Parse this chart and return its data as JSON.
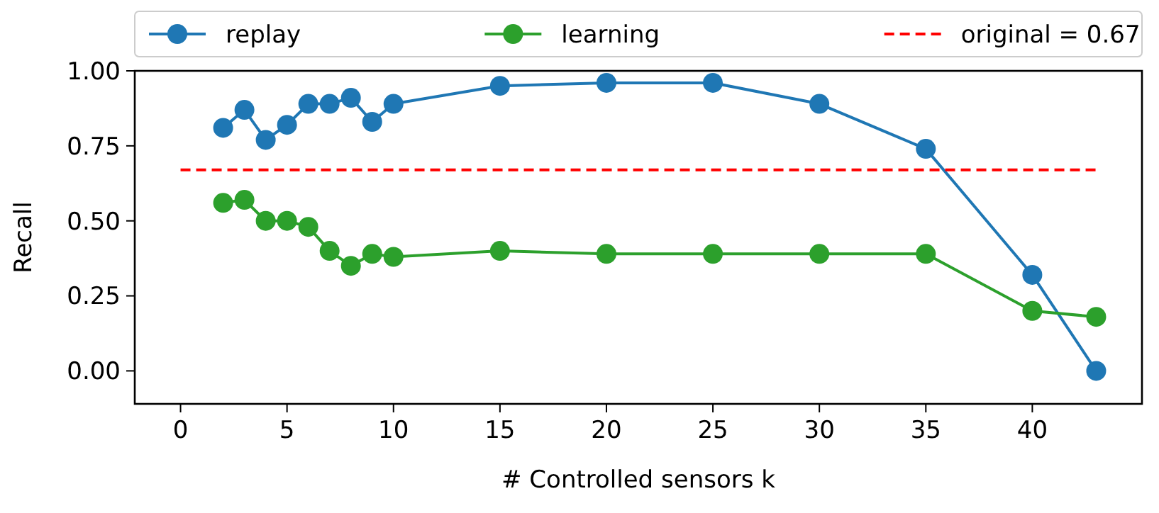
{
  "chart_data": {
    "type": "line",
    "xlabel": "# Controlled sensors k",
    "ylabel": "Recall",
    "x": [
      2,
      3,
      4,
      5,
      6,
      7,
      8,
      9,
      10,
      15,
      20,
      25,
      30,
      35,
      40,
      43
    ],
    "series": [
      {
        "name": "replay",
        "color": "#1f77b4",
        "marker": "circle",
        "line_style": "solid",
        "values": [
          0.81,
          0.87,
          0.77,
          0.82,
          0.89,
          0.89,
          0.91,
          0.83,
          0.89,
          0.95,
          0.96,
          0.96,
          0.89,
          0.74,
          0.32,
          0.0
        ]
      },
      {
        "name": "learning",
        "color": "#2ca02c",
        "marker": "circle",
        "line_style": "solid",
        "values": [
          0.56,
          0.57,
          0.5,
          0.5,
          0.48,
          0.4,
          0.35,
          0.39,
          0.38,
          0.4,
          0.39,
          0.39,
          0.39,
          0.39,
          0.2,
          0.18
        ]
      },
      {
        "name": "original = 0.67",
        "color": "#ff0000",
        "marker": "none",
        "line_style": "dashed",
        "x": [
          0,
          43
        ],
        "values": [
          0.67,
          0.67
        ]
      }
    ],
    "xlim": [
      -2.15,
      45.15
    ],
    "xticks": [
      0,
      5,
      10,
      15,
      20,
      25,
      30,
      35,
      40
    ],
    "ylim": [
      -0.11,
      1.0
    ],
    "yticks": [
      {
        "value": 0,
        "label": "0.00"
      },
      {
        "value": 0.25,
        "label": "0.25"
      },
      {
        "value": 0.5,
        "label": "0.50"
      },
      {
        "value": 0.75,
        "label": "0.75"
      },
      {
        "value": 1.0,
        "label": "1.00"
      }
    ],
    "legend": "top",
    "grid": false
  }
}
